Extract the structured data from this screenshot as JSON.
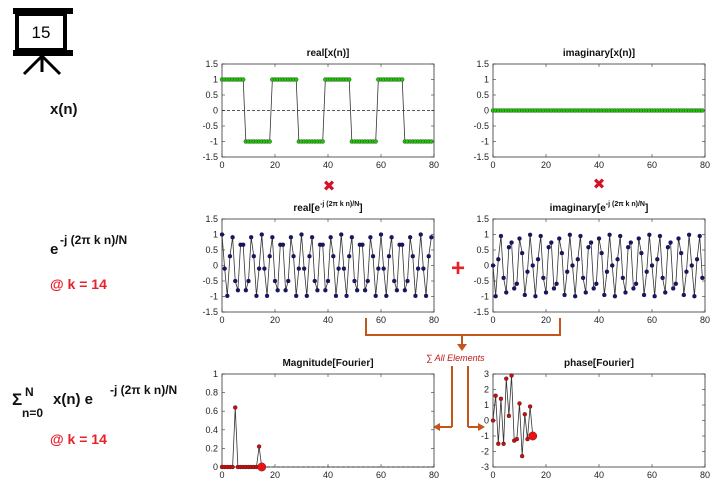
{
  "slide": {
    "number": "15"
  },
  "row_labels": {
    "signal": "x(n)",
    "kernel_base": "e",
    "kernel_exp": "-j (2π k n)/N",
    "kernel_k": "@ k = 14",
    "sum_symbol": "Σ",
    "sum_upper": "N",
    "sum_lower": "n=0",
    "sum_body": "x(n) e",
    "sum_exp": "-j (2π k n)/N",
    "sum_k": "@ k = 14"
  },
  "annotation": {
    "all_elements": "∑ All Elements"
  },
  "operators": {
    "multiply": "✖",
    "plus": "+"
  },
  "colors": {
    "green": "#22c40a",
    "navy": "#16156f",
    "red_marker": "#c81010",
    "arrow": "#c5561a",
    "accent_red": "#e8202a"
  },
  "chart_data": [
    {
      "id": "real_x",
      "type": "line",
      "title": "real[x(n)]",
      "xlim": [
        0,
        80
      ],
      "ylim": [
        -1.5,
        1.5
      ],
      "xticks": [
        "0",
        "20",
        "40",
        "60",
        "80"
      ],
      "yticks": [
        "1.5",
        "1",
        "0.5",
        "0",
        "-0.5",
        "-1",
        "-1.5"
      ],
      "marker_color": "#22c40a",
      "dashed_zero": true,
      "series": [
        {
          "values": [
            1,
            1,
            1,
            1,
            1,
            1,
            1,
            1,
            1,
            -1,
            -1,
            -1,
            -1,
            -1,
            -1,
            -1,
            -1,
            -1,
            -1,
            1,
            1,
            1,
            1,
            1,
            1,
            1,
            1,
            1,
            1,
            -1,
            -1,
            -1,
            -1,
            -1,
            -1,
            -1,
            -1,
            -1,
            -1,
            1,
            1,
            1,
            1,
            1,
            1,
            1,
            1,
            1,
            1,
            -1,
            -1,
            -1,
            -1,
            -1,
            -1,
            -1,
            -1,
            -1,
            -1,
            1,
            1,
            1,
            1,
            1,
            1,
            1,
            1,
            1,
            1,
            -1,
            -1,
            -1,
            -1,
            -1,
            -1,
            -1,
            -1,
            -1,
            -1,
            -1
          ]
        }
      ]
    },
    {
      "id": "imag_x",
      "type": "line",
      "title": "imaginary[x(n)]",
      "xlim": [
        0,
        80
      ],
      "ylim": [
        -1.5,
        1.5
      ],
      "xticks": [
        "0",
        "20",
        "40",
        "60",
        "80"
      ],
      "yticks": [
        "1.5",
        "1",
        "0.5",
        "0",
        "-0.5",
        "-1",
        "-1.5"
      ],
      "marker_color": "#22c40a",
      "dashed_zero": false,
      "series": [
        {
          "values": [
            0,
            0,
            0,
            0,
            0,
            0,
            0,
            0,
            0,
            0,
            0,
            0,
            0,
            0,
            0,
            0,
            0,
            0,
            0,
            0,
            0,
            0,
            0,
            0,
            0,
            0,
            0,
            0,
            0,
            0,
            0,
            0,
            0,
            0,
            0,
            0,
            0,
            0,
            0,
            0,
            0,
            0,
            0,
            0,
            0,
            0,
            0,
            0,
            0,
            0,
            0,
            0,
            0,
            0,
            0,
            0,
            0,
            0,
            0,
            0,
            0,
            0,
            0,
            0,
            0,
            0,
            0,
            0,
            0,
            0,
            0,
            0,
            0,
            0,
            0,
            0,
            0,
            0,
            0,
            0
          ]
        }
      ]
    },
    {
      "id": "real_kernel",
      "type": "line",
      "title_base": "real[e",
      "title_sup": "-j (2π k n)/N",
      "title_end": "]",
      "xlim": [
        0,
        80
      ],
      "ylim": [
        -1.5,
        1.5
      ],
      "xticks": [
        "0",
        "20",
        "40",
        "60",
        "80"
      ],
      "yticks": [
        "1.5",
        "1",
        "0.5",
        "0",
        "-0.5",
        "-1",
        "-1.5"
      ],
      "marker_color": "#16156f",
      "dashed_zero": false,
      "series": [
        {
          "values": [
            1,
            -0.1,
            -0.98,
            0.3,
            0.91,
            -0.5,
            -0.8,
            0.67,
            0.67,
            -0.8,
            -0.5,
            0.91,
            0.3,
            -0.98,
            -0.1,
            1,
            -0.1,
            -0.98,
            0.3,
            0.91,
            -0.5,
            -0.8,
            0.67,
            0.67,
            -0.8,
            -0.5,
            0.91,
            0.3,
            -0.98,
            -0.1,
            1,
            -0.1,
            -0.98,
            0.3,
            0.91,
            -0.5,
            -0.8,
            0.67,
            0.67,
            -0.8,
            -0.5,
            0.91,
            0.3,
            -0.98,
            -0.1,
            1,
            -0.1,
            -0.98,
            0.3,
            0.91,
            -0.5,
            -0.8,
            0.67,
            0.67,
            -0.8,
            -0.5,
            0.91,
            0.3,
            -0.98,
            -0.1,
            1,
            -0.1,
            -0.98,
            0.3,
            0.91,
            -0.5,
            -0.8,
            0.67,
            0.67,
            -0.8,
            -0.5,
            0.91,
            0.3,
            -0.98,
            -0.1,
            1,
            -0.1,
            -0.98,
            0.3,
            0.91
          ]
        }
      ]
    },
    {
      "id": "imag_kernel",
      "type": "line",
      "title_base": "imaginary[e",
      "title_sup": "-j (2π k n)/N",
      "title_end": "]",
      "xlim": [
        0,
        80
      ],
      "ylim": [
        -1.5,
        1.5
      ],
      "xticks": [
        "0",
        "20",
        "40",
        "60",
        "80"
      ],
      "yticks": [
        "1.5",
        "1",
        "0.5",
        "0",
        "-0.5",
        "-1",
        "-1.5"
      ],
      "marker_color": "#16156f",
      "dashed_zero": false,
      "series": [
        {
          "values": [
            0,
            -0.99,
            0.2,
            0.95,
            -0.4,
            -0.87,
            0.59,
            0.74,
            -0.74,
            -0.59,
            0.87,
            0.4,
            -0.95,
            -0.2,
            0.99,
            0,
            -0.99,
            0.2,
            0.95,
            -0.4,
            -0.87,
            0.59,
            0.74,
            -0.74,
            -0.59,
            0.87,
            0.4,
            -0.95,
            -0.2,
            0.99,
            0,
            -0.99,
            0.2,
            0.95,
            -0.4,
            -0.87,
            0.59,
            0.74,
            -0.74,
            -0.59,
            0.87,
            0.4,
            -0.95,
            -0.2,
            0.99,
            0,
            -0.99,
            0.2,
            0.95,
            -0.4,
            -0.87,
            0.59,
            0.74,
            -0.74,
            -0.59,
            0.87,
            0.4,
            -0.95,
            -0.2,
            0.99,
            0,
            -0.99,
            0.2,
            0.95,
            -0.4,
            -0.87,
            0.59,
            0.74,
            -0.74,
            -0.59,
            0.87,
            0.4,
            -0.95,
            -0.2,
            0.99,
            0,
            -0.99,
            0.2,
            0.95,
            -0.4
          ]
        }
      ]
    },
    {
      "id": "magnitude",
      "type": "line",
      "title": "Magnitude[Fourier]",
      "xlim": [
        0,
        80
      ],
      "ylim": [
        0,
        1
      ],
      "xticks": [
        "0",
        "20",
        "40",
        "60",
        "80"
      ],
      "yticks": [
        "1",
        "0.8",
        "0.6",
        "0.4",
        "0.2",
        "0"
      ],
      "marker_color": "#c81010",
      "dashed_zero": false,
      "dashed_tail": true,
      "series": [
        {
          "values": [
            0,
            0,
            0,
            0,
            0,
            0.64,
            0,
            0,
            0,
            0,
            0,
            0,
            0,
            0,
            0.22,
            0
          ]
        }
      ],
      "highlight_index": 15
    },
    {
      "id": "phase",
      "type": "line",
      "title": "phase[Fourier]",
      "xlim": [
        0,
        80
      ],
      "ylim": [
        -3,
        3
      ],
      "xticks": [
        "0",
        "20",
        "40",
        "60",
        "80"
      ],
      "yticks": [
        "3",
        "2",
        "1",
        "0",
        "-1",
        "-2",
        "-3"
      ],
      "marker_color": "#c81010",
      "dashed_zero": false,
      "series": [
        {
          "values": [
            0,
            1.6,
            -1.5,
            1.4,
            -1.5,
            2.7,
            0.3,
            2.9,
            -1.3,
            -1.2,
            1.1,
            -2.3,
            0.4,
            -1.2,
            0.9,
            -1
          ]
        }
      ],
      "highlight_index": 15
    }
  ]
}
